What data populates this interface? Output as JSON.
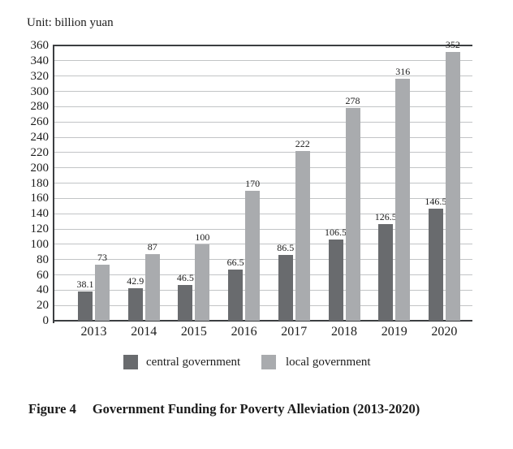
{
  "unit_label": "Unit: billion yuan",
  "figure": {
    "label": "Figure 4",
    "title": "Government Funding for Poverty Alleviation (2013-2020)"
  },
  "legend": {
    "items": [
      {
        "label": "central government",
        "color": "#696b6e"
      },
      {
        "label": "local government",
        "color": "#a9abae"
      }
    ]
  },
  "chart_data": {
    "type": "bar",
    "categories": [
      "2013",
      "2014",
      "2015",
      "2016",
      "2017",
      "2018",
      "2019",
      "2020"
    ],
    "series": [
      {
        "name": "central government",
        "color": "#696b6e",
        "values": [
          38.1,
          42.9,
          46.5,
          66.5,
          86.5,
          106.5,
          126.5,
          146.5
        ]
      },
      {
        "name": "local government",
        "color": "#a9abae",
        "values": [
          73,
          87,
          100,
          170,
          222,
          278,
          316,
          352
        ]
      }
    ],
    "title": "Government Funding for Poverty Alleviation (2013-2020)",
    "xlabel": "",
    "ylabel": "Unit: billion yuan",
    "ylim": [
      0,
      360
    ],
    "yticks": [
      0,
      20,
      40,
      60,
      80,
      100,
      120,
      140,
      160,
      180,
      200,
      220,
      240,
      260,
      280,
      300,
      320,
      340,
      360
    ],
    "grid": true,
    "value_labels": true,
    "legend_position": "bottom",
    "colors": {
      "axis": "#3c3e41",
      "gridline": "#c2c4c6",
      "text": "#1c1c1c",
      "background": "#ffffff"
    }
  }
}
